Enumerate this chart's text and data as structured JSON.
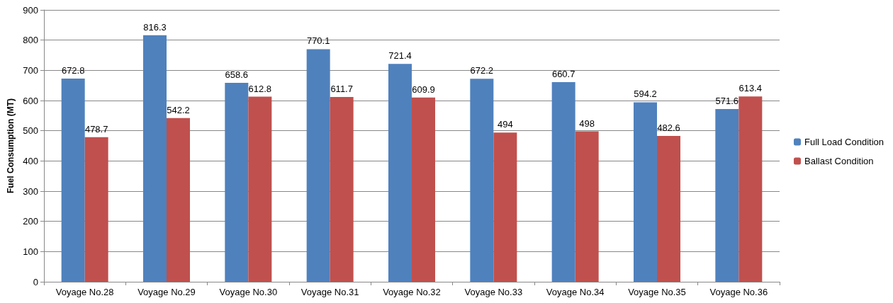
{
  "chart_data": {
    "type": "bar",
    "ylabel": "Fuel Consumption (MT)",
    "categories": [
      "Voyage No.28",
      "Voyage No.29",
      "Voyage No.30",
      "Voyage No.31",
      "Voyage No.32",
      "Voyage No.33",
      "Voyage No.34",
      "Voyage No.35",
      "Voyage No.36"
    ],
    "series": [
      {
        "name": "Full Load Condition",
        "color": "#4f81bd",
        "values": [
          672.8,
          816.3,
          658.6,
          770.1,
          721.4,
          672.2,
          660.7,
          594.2,
          571.6
        ]
      },
      {
        "name": "Ballast Condition",
        "color": "#c0504d",
        "values": [
          478.7,
          542.2,
          612.8,
          611.7,
          609.9,
          494,
          498,
          482.6,
          613.4
        ]
      }
    ],
    "ylim": [
      0,
      900
    ],
    "yticks": [
      0,
      100,
      200,
      300,
      400,
      500,
      600,
      700,
      800,
      900
    ],
    "grid": "y",
    "legend": "right",
    "data_labels": true
  }
}
